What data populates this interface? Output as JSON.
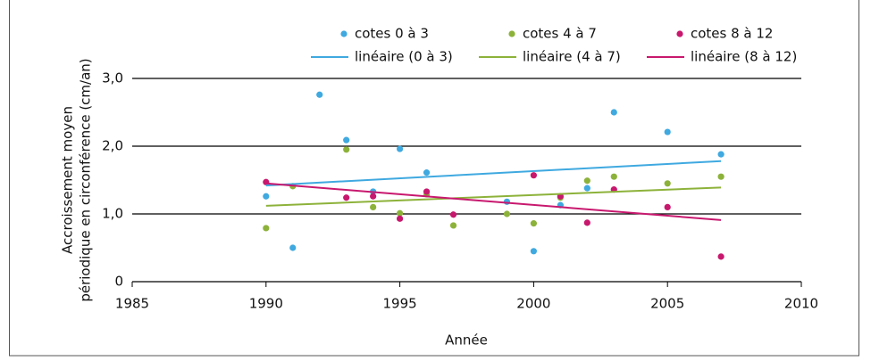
{
  "chart_data": {
    "type": "scatter",
    "xlabel": "Année",
    "ylabel": [
      "Accroissement moyen",
      "périodique en circonférence (cm/an)"
    ],
    "xlim": [
      1985,
      2010
    ],
    "xticks": [
      1985,
      1990,
      1995,
      2000,
      2005,
      2010
    ],
    "ylim": [
      0,
      3
    ],
    "yticks": [
      0,
      {
        "value": 1,
        "label": "1,0"
      },
      {
        "value": 2,
        "label": "2,0"
      },
      {
        "value": 3,
        "label": "3,0"
      }
    ],
    "grid": true,
    "series": [
      {
        "name": "cotes 0 à 3",
        "type": "scatter",
        "color": "#3fa9e0",
        "x": [
          1990,
          1991,
          1992,
          1993,
          1994,
          1995,
          1996,
          1999,
          2000,
          2001,
          2002,
          2003,
          2005,
          2007
        ],
        "values": [
          1.26,
          0.5,
          2.76,
          2.09,
          1.33,
          1.96,
          1.61,
          1.18,
          0.45,
          1.13,
          1.38,
          2.5,
          2.21,
          1.88
        ]
      },
      {
        "name": "cotes 4 à 7",
        "type": "scatter",
        "color": "#8db23a",
        "x": [
          1990,
          1991,
          1993,
          1994,
          1995,
          1996,
          1997,
          1999,
          2000,
          2001,
          2002,
          2003,
          2005,
          2007
        ],
        "values": [
          0.79,
          1.41,
          1.95,
          1.1,
          1.01,
          1.29,
          0.83,
          1.0,
          0.86,
          1.24,
          1.49,
          1.55,
          1.45,
          1.55
        ]
      },
      {
        "name": "cotes 8 à 12",
        "type": "scatter",
        "color": "#c8186e",
        "x": [
          1990,
          1993,
          1994,
          1995,
          1996,
          1997,
          2000,
          2001,
          2002,
          2003,
          2005,
          2007
        ],
        "values": [
          1.47,
          1.24,
          1.26,
          0.93,
          1.33,
          0.99,
          1.57,
          1.26,
          0.87,
          1.36,
          1.1,
          0.37
        ]
      },
      {
        "name": "linéaire (0 à 3)",
        "type": "line",
        "color": "#3fa9e0",
        "x": [
          1990,
          2007
        ],
        "values": [
          1.42,
          1.78
        ]
      },
      {
        "name": "linéaire (4 à 7)",
        "type": "line",
        "color": "#8db23a",
        "x": [
          1990,
          2007
        ],
        "values": [
          1.12,
          1.39
        ]
      },
      {
        "name": "linéaire (8 à 12)",
        "type": "line",
        "color": "#c8186e",
        "x": [
          1990,
          2007
        ],
        "values": [
          1.45,
          0.91
        ]
      }
    ]
  }
}
